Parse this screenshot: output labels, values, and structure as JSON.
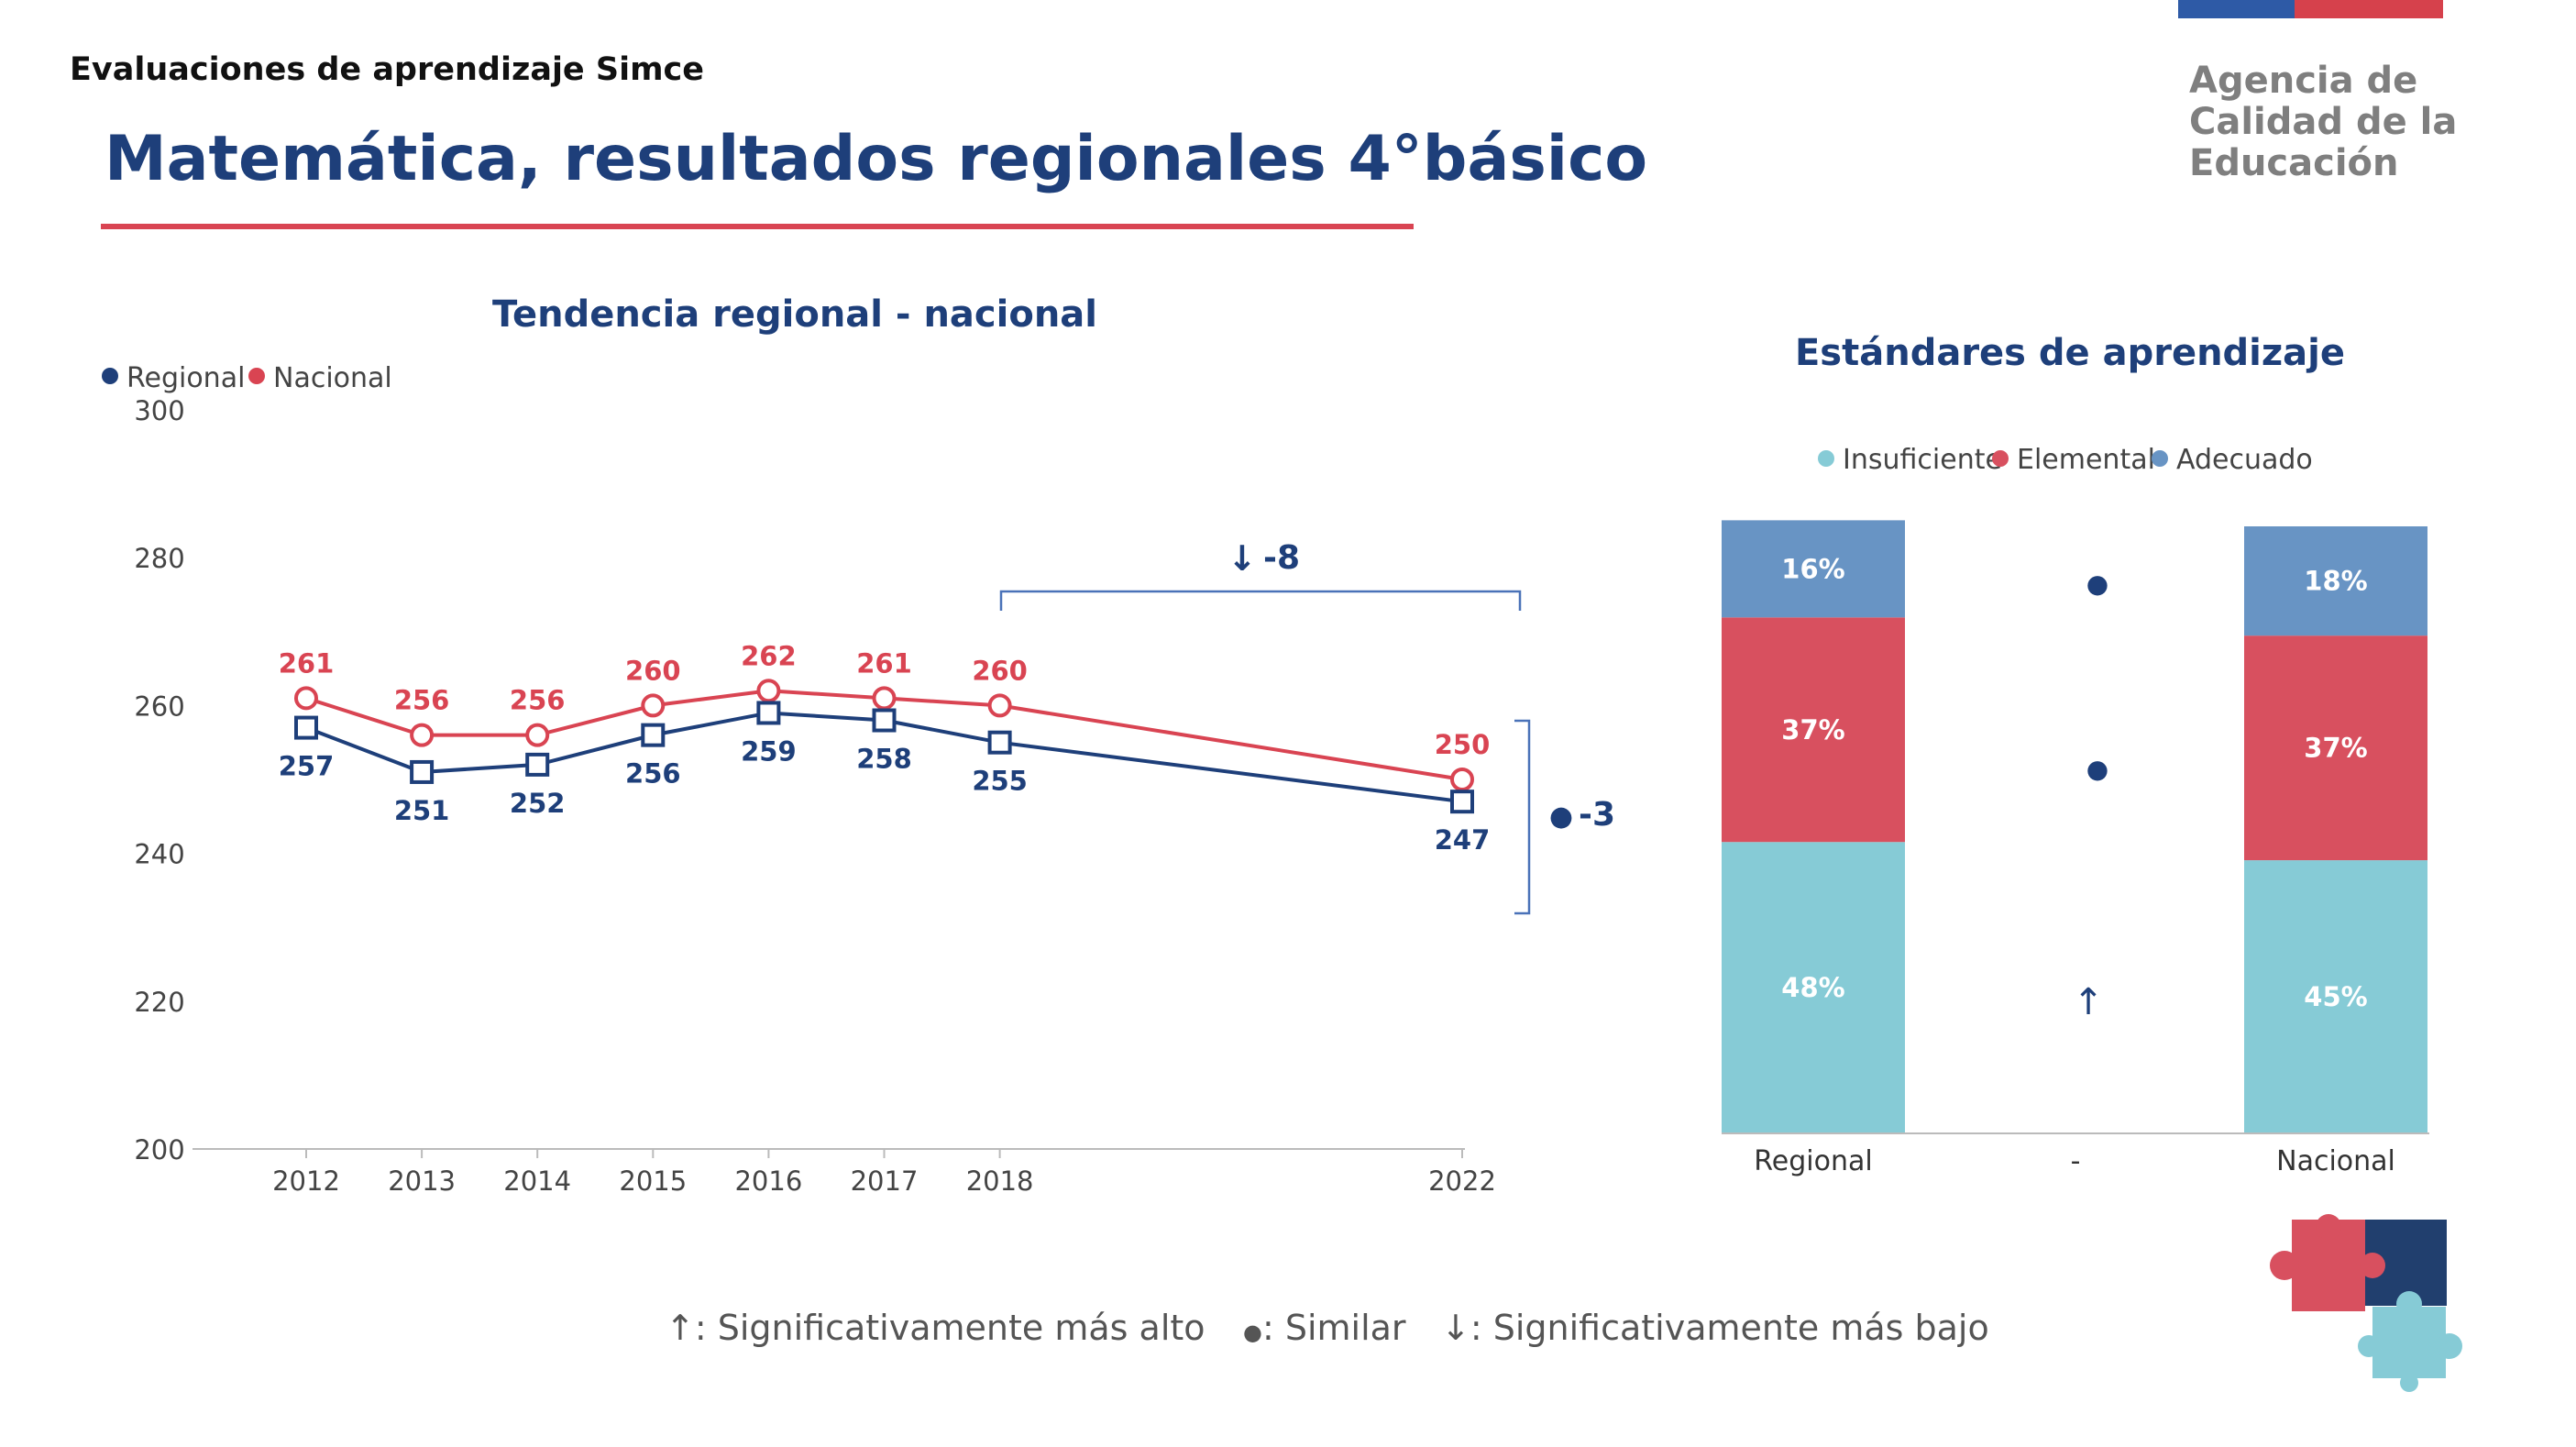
{
  "header": {
    "kicker": "Evaluaciones de aprendizaje Simce",
    "title": "Matemática, resultados regionales 4°básico"
  },
  "logo": {
    "lines": [
      "Agencia de",
      "Calidad de la",
      "Educación"
    ]
  },
  "colors": {
    "regional": "#1e3f7a",
    "nacional": "#d94452",
    "insuficiente": "#86cbd6",
    "elemental": "#d8505f",
    "adecuado": "#6894c4",
    "logo_blue": "#2e5aa6",
    "logo_red": "#d6414c"
  },
  "chart_data": [
    {
      "type": "line",
      "title": "Tendencia regional - nacional",
      "x": [
        "2012",
        "2013",
        "2014",
        "2015",
        "2016",
        "2017",
        "2018",
        "2022"
      ],
      "series": [
        {
          "name": "Regional",
          "values": [
            257,
            251,
            252,
            256,
            259,
            258,
            255,
            247
          ]
        },
        {
          "name": "Nacional",
          "values": [
            261,
            256,
            256,
            260,
            262,
            261,
            260,
            250
          ]
        }
      ],
      "ylim": [
        200,
        300
      ],
      "yticks": [
        "200",
        "220",
        "240",
        "260",
        "280",
        "300"
      ],
      "legend": "top-left",
      "grid": false,
      "annotations": {
        "change_since_2018": {
          "symbol": "↓",
          "value": "-8"
        },
        "regional_vs_nacional": {
          "symbol": "●",
          "value": "-3"
        }
      }
    },
    {
      "type": "bar",
      "stacked": true,
      "title": "Estándares de aprendizaje",
      "categories": [
        "Regional",
        "-",
        "Nacional"
      ],
      "series": [
        {
          "name": "Insuficiente",
          "values": [
            48,
            null,
            45
          ],
          "labels": [
            "48%",
            "",
            "45%"
          ]
        },
        {
          "name": "Elemental",
          "values": [
            37,
            null,
            37
          ],
          "labels": [
            "37%",
            "",
            "37%"
          ]
        },
        {
          "name": "Adecuado",
          "values": [
            16,
            null,
            18
          ],
          "labels": [
            "16%",
            "",
            "18%"
          ]
        }
      ],
      "significance": {
        "insuficiente": "↑",
        "elemental": "●",
        "adecuado": "●"
      },
      "legend": "top-center"
    }
  ],
  "footer_legend": [
    {
      "symbol": "↑",
      "text": ": Significativamente más alto"
    },
    {
      "symbol": "●",
      "text": ": Similar"
    },
    {
      "symbol": "↓",
      "text": ": Significativamente más bajo"
    }
  ]
}
